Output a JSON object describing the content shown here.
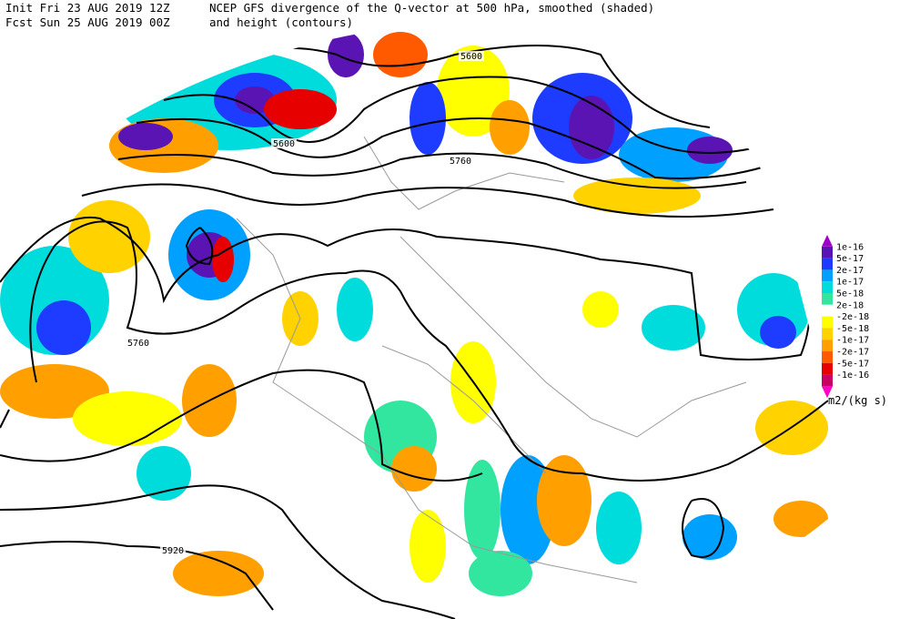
{
  "header": {
    "init": "Init  Fri 23 AUG 2019 12Z",
    "forecast": "Fcst Sun 25 AUG 2019 00Z",
    "title": "NCEP GFS divergence of the Q-vector at 500 hPa, smoothed (shaded)",
    "subtitle": "and height (contours)"
  },
  "colorbar": {
    "labels": [
      "1e-16",
      "5e-17",
      "2e-17",
      "1e-17",
      "5e-18",
      "2e-18",
      "-2e-18",
      "-5e-18",
      "-1e-17",
      "-2e-17",
      "-5e-17",
      "-1e-16"
    ],
    "colors": [
      "#a000c8",
      "#5a14b4",
      "#1e3cff",
      "#00a0ff",
      "#00dcdc",
      "#32e6a0",
      "#ffffff",
      "#ffff00",
      "#ffd200",
      "#ffa000",
      "#ff5a00",
      "#e60000",
      "#c80064",
      "#ff00c8"
    ],
    "unit": "m2/(kg s)"
  },
  "contour_labels": [
    "5600",
    "5600",
    "5760",
    "5760",
    "5920"
  ]
}
